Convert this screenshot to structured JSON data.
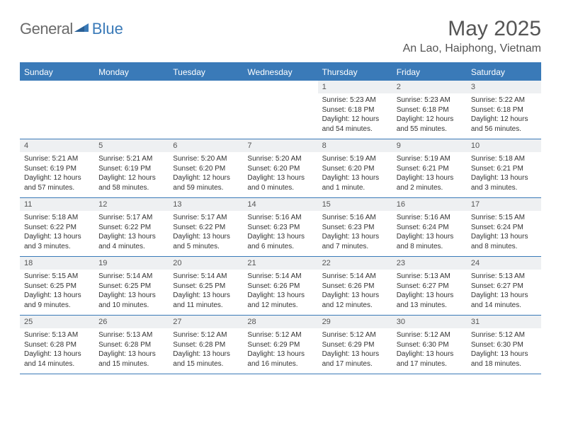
{
  "logo": {
    "part1": "General",
    "part2": "Blue"
  },
  "title": "May 2025",
  "location": "An Lao, Haiphong, Vietnam",
  "weekday_bg": "#3a7ab8",
  "weekdays": [
    "Sunday",
    "Monday",
    "Tuesday",
    "Wednesday",
    "Thursday",
    "Friday",
    "Saturday"
  ],
  "weeks": [
    [
      null,
      null,
      null,
      null,
      {
        "d": "1",
        "sr": "5:23 AM",
        "ss": "6:18 PM",
        "dl": "12 hours and 54 minutes."
      },
      {
        "d": "2",
        "sr": "5:23 AM",
        "ss": "6:18 PM",
        "dl": "12 hours and 55 minutes."
      },
      {
        "d": "3",
        "sr": "5:22 AM",
        "ss": "6:18 PM",
        "dl": "12 hours and 56 minutes."
      }
    ],
    [
      {
        "d": "4",
        "sr": "5:21 AM",
        "ss": "6:19 PM",
        "dl": "12 hours and 57 minutes."
      },
      {
        "d": "5",
        "sr": "5:21 AM",
        "ss": "6:19 PM",
        "dl": "12 hours and 58 minutes."
      },
      {
        "d": "6",
        "sr": "5:20 AM",
        "ss": "6:20 PM",
        "dl": "12 hours and 59 minutes."
      },
      {
        "d": "7",
        "sr": "5:20 AM",
        "ss": "6:20 PM",
        "dl": "13 hours and 0 minutes."
      },
      {
        "d": "8",
        "sr": "5:19 AM",
        "ss": "6:20 PM",
        "dl": "13 hours and 1 minute."
      },
      {
        "d": "9",
        "sr": "5:19 AM",
        "ss": "6:21 PM",
        "dl": "13 hours and 2 minutes."
      },
      {
        "d": "10",
        "sr": "5:18 AM",
        "ss": "6:21 PM",
        "dl": "13 hours and 3 minutes."
      }
    ],
    [
      {
        "d": "11",
        "sr": "5:18 AM",
        "ss": "6:22 PM",
        "dl": "13 hours and 3 minutes."
      },
      {
        "d": "12",
        "sr": "5:17 AM",
        "ss": "6:22 PM",
        "dl": "13 hours and 4 minutes."
      },
      {
        "d": "13",
        "sr": "5:17 AM",
        "ss": "6:22 PM",
        "dl": "13 hours and 5 minutes."
      },
      {
        "d": "14",
        "sr": "5:16 AM",
        "ss": "6:23 PM",
        "dl": "13 hours and 6 minutes."
      },
      {
        "d": "15",
        "sr": "5:16 AM",
        "ss": "6:23 PM",
        "dl": "13 hours and 7 minutes."
      },
      {
        "d": "16",
        "sr": "5:16 AM",
        "ss": "6:24 PM",
        "dl": "13 hours and 8 minutes."
      },
      {
        "d": "17",
        "sr": "5:15 AM",
        "ss": "6:24 PM",
        "dl": "13 hours and 8 minutes."
      }
    ],
    [
      {
        "d": "18",
        "sr": "5:15 AM",
        "ss": "6:25 PM",
        "dl": "13 hours and 9 minutes."
      },
      {
        "d": "19",
        "sr": "5:14 AM",
        "ss": "6:25 PM",
        "dl": "13 hours and 10 minutes."
      },
      {
        "d": "20",
        "sr": "5:14 AM",
        "ss": "6:25 PM",
        "dl": "13 hours and 11 minutes."
      },
      {
        "d": "21",
        "sr": "5:14 AM",
        "ss": "6:26 PM",
        "dl": "13 hours and 12 minutes."
      },
      {
        "d": "22",
        "sr": "5:14 AM",
        "ss": "6:26 PM",
        "dl": "13 hours and 12 minutes."
      },
      {
        "d": "23",
        "sr": "5:13 AM",
        "ss": "6:27 PM",
        "dl": "13 hours and 13 minutes."
      },
      {
        "d": "24",
        "sr": "5:13 AM",
        "ss": "6:27 PM",
        "dl": "13 hours and 14 minutes."
      }
    ],
    [
      {
        "d": "25",
        "sr": "5:13 AM",
        "ss": "6:28 PM",
        "dl": "13 hours and 14 minutes."
      },
      {
        "d": "26",
        "sr": "5:13 AM",
        "ss": "6:28 PM",
        "dl": "13 hours and 15 minutes."
      },
      {
        "d": "27",
        "sr": "5:12 AM",
        "ss": "6:28 PM",
        "dl": "13 hours and 15 minutes."
      },
      {
        "d": "28",
        "sr": "5:12 AM",
        "ss": "6:29 PM",
        "dl": "13 hours and 16 minutes."
      },
      {
        "d": "29",
        "sr": "5:12 AM",
        "ss": "6:29 PM",
        "dl": "13 hours and 17 minutes."
      },
      {
        "d": "30",
        "sr": "5:12 AM",
        "ss": "6:30 PM",
        "dl": "13 hours and 17 minutes."
      },
      {
        "d": "31",
        "sr": "5:12 AM",
        "ss": "6:30 PM",
        "dl": "13 hours and 18 minutes."
      }
    ]
  ],
  "labels": {
    "sunrise": "Sunrise: ",
    "sunset": "Sunset: ",
    "daylight": "Daylight: "
  }
}
